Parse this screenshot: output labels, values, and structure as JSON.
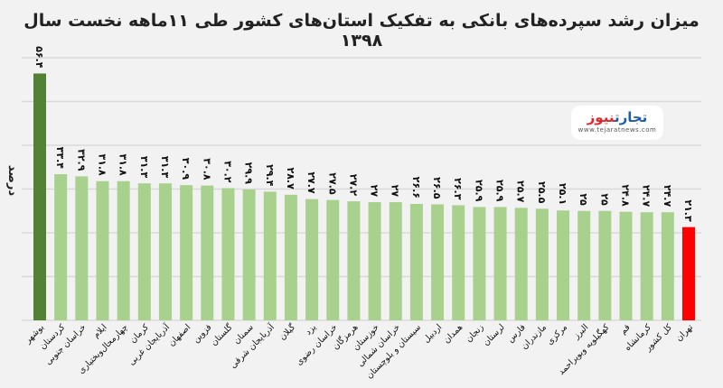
{
  "chart_data": {
    "type": "bar",
    "title": "میزان رشد سپرده‌های بانکی به تفکیک استان‌های کشور طی ۱۱ماهه نخست سال ۱۳۹۸",
    "ylabel": "درصد",
    "xlabel": "",
    "ylim": [
      0,
      60
    ],
    "grid": true,
    "categories": [
      "بوشهر",
      "کردستان",
      "خراسان جنوبی",
      "ایلام",
      "چهارمحال‌وبختیاری",
      "کرمان",
      "آذربایجان غربی",
      "اصفهان",
      "قزوین",
      "گلستان",
      "سمنان",
      "آذربایجان شرقی",
      "گیلان",
      "یزد",
      "خراسان رضوی",
      "هرمزگان",
      "خوزستان",
      "خراسان شمالی",
      "سیستان و بلوچستان",
      "اردبیل",
      "همدان",
      "زنجان",
      "لرستان",
      "فارس",
      "مازندران",
      "مرکزی",
      "البرز",
      "کهگیلویه وبویراحمد",
      "قم",
      "کرمانشاه",
      "کل کشور",
      "تهران"
    ],
    "values": [
      56.4,
      33.4,
      32.9,
      31.8,
      31.8,
      31.3,
      31.3,
      30.9,
      30.8,
      30.2,
      29.9,
      29.4,
      28.7,
      27.7,
      27.5,
      27.2,
      27,
      27,
      26.6,
      26.5,
      26.3,
      25.9,
      25.9,
      25.7,
      25.5,
      25.1,
      25,
      25,
      24.8,
      24.7,
      24.7,
      21.3
    ],
    "value_labels": [
      "۵۶.۴",
      "۳۳.۴",
      "۳۲.۹",
      "۳۱.۸",
      "۳۱.۸",
      "۳۱.۳",
      "۳۱.۳",
      "۳۰.۹",
      "۳۰.۸",
      "۳۰.۲",
      "۲۹.۹",
      "۲۹.۴",
      "۲۸.۷",
      "۲۷.۷",
      "۲۷.۵",
      "۲۷.۲",
      "۲۷",
      "۲۷",
      "۲۶.۶",
      "۲۶.۵",
      "۲۶.۳",
      "۲۵.۹",
      "۲۵.۹",
      "۲۵.۷",
      "۲۵.۵",
      "۲۵.۱",
      "۲۵",
      "۲۵",
      "۲۴.۸",
      "۲۴.۷",
      "۲۴.۷",
      "۲۱.۳"
    ],
    "colors": {
      "highest": "#548235",
      "default": "#a9d18e",
      "lowest": "#ff0000"
    }
  },
  "logo": {
    "part1": "تجارت",
    "part2": "نیوز",
    "url": "www.tejaratnews.com"
  }
}
